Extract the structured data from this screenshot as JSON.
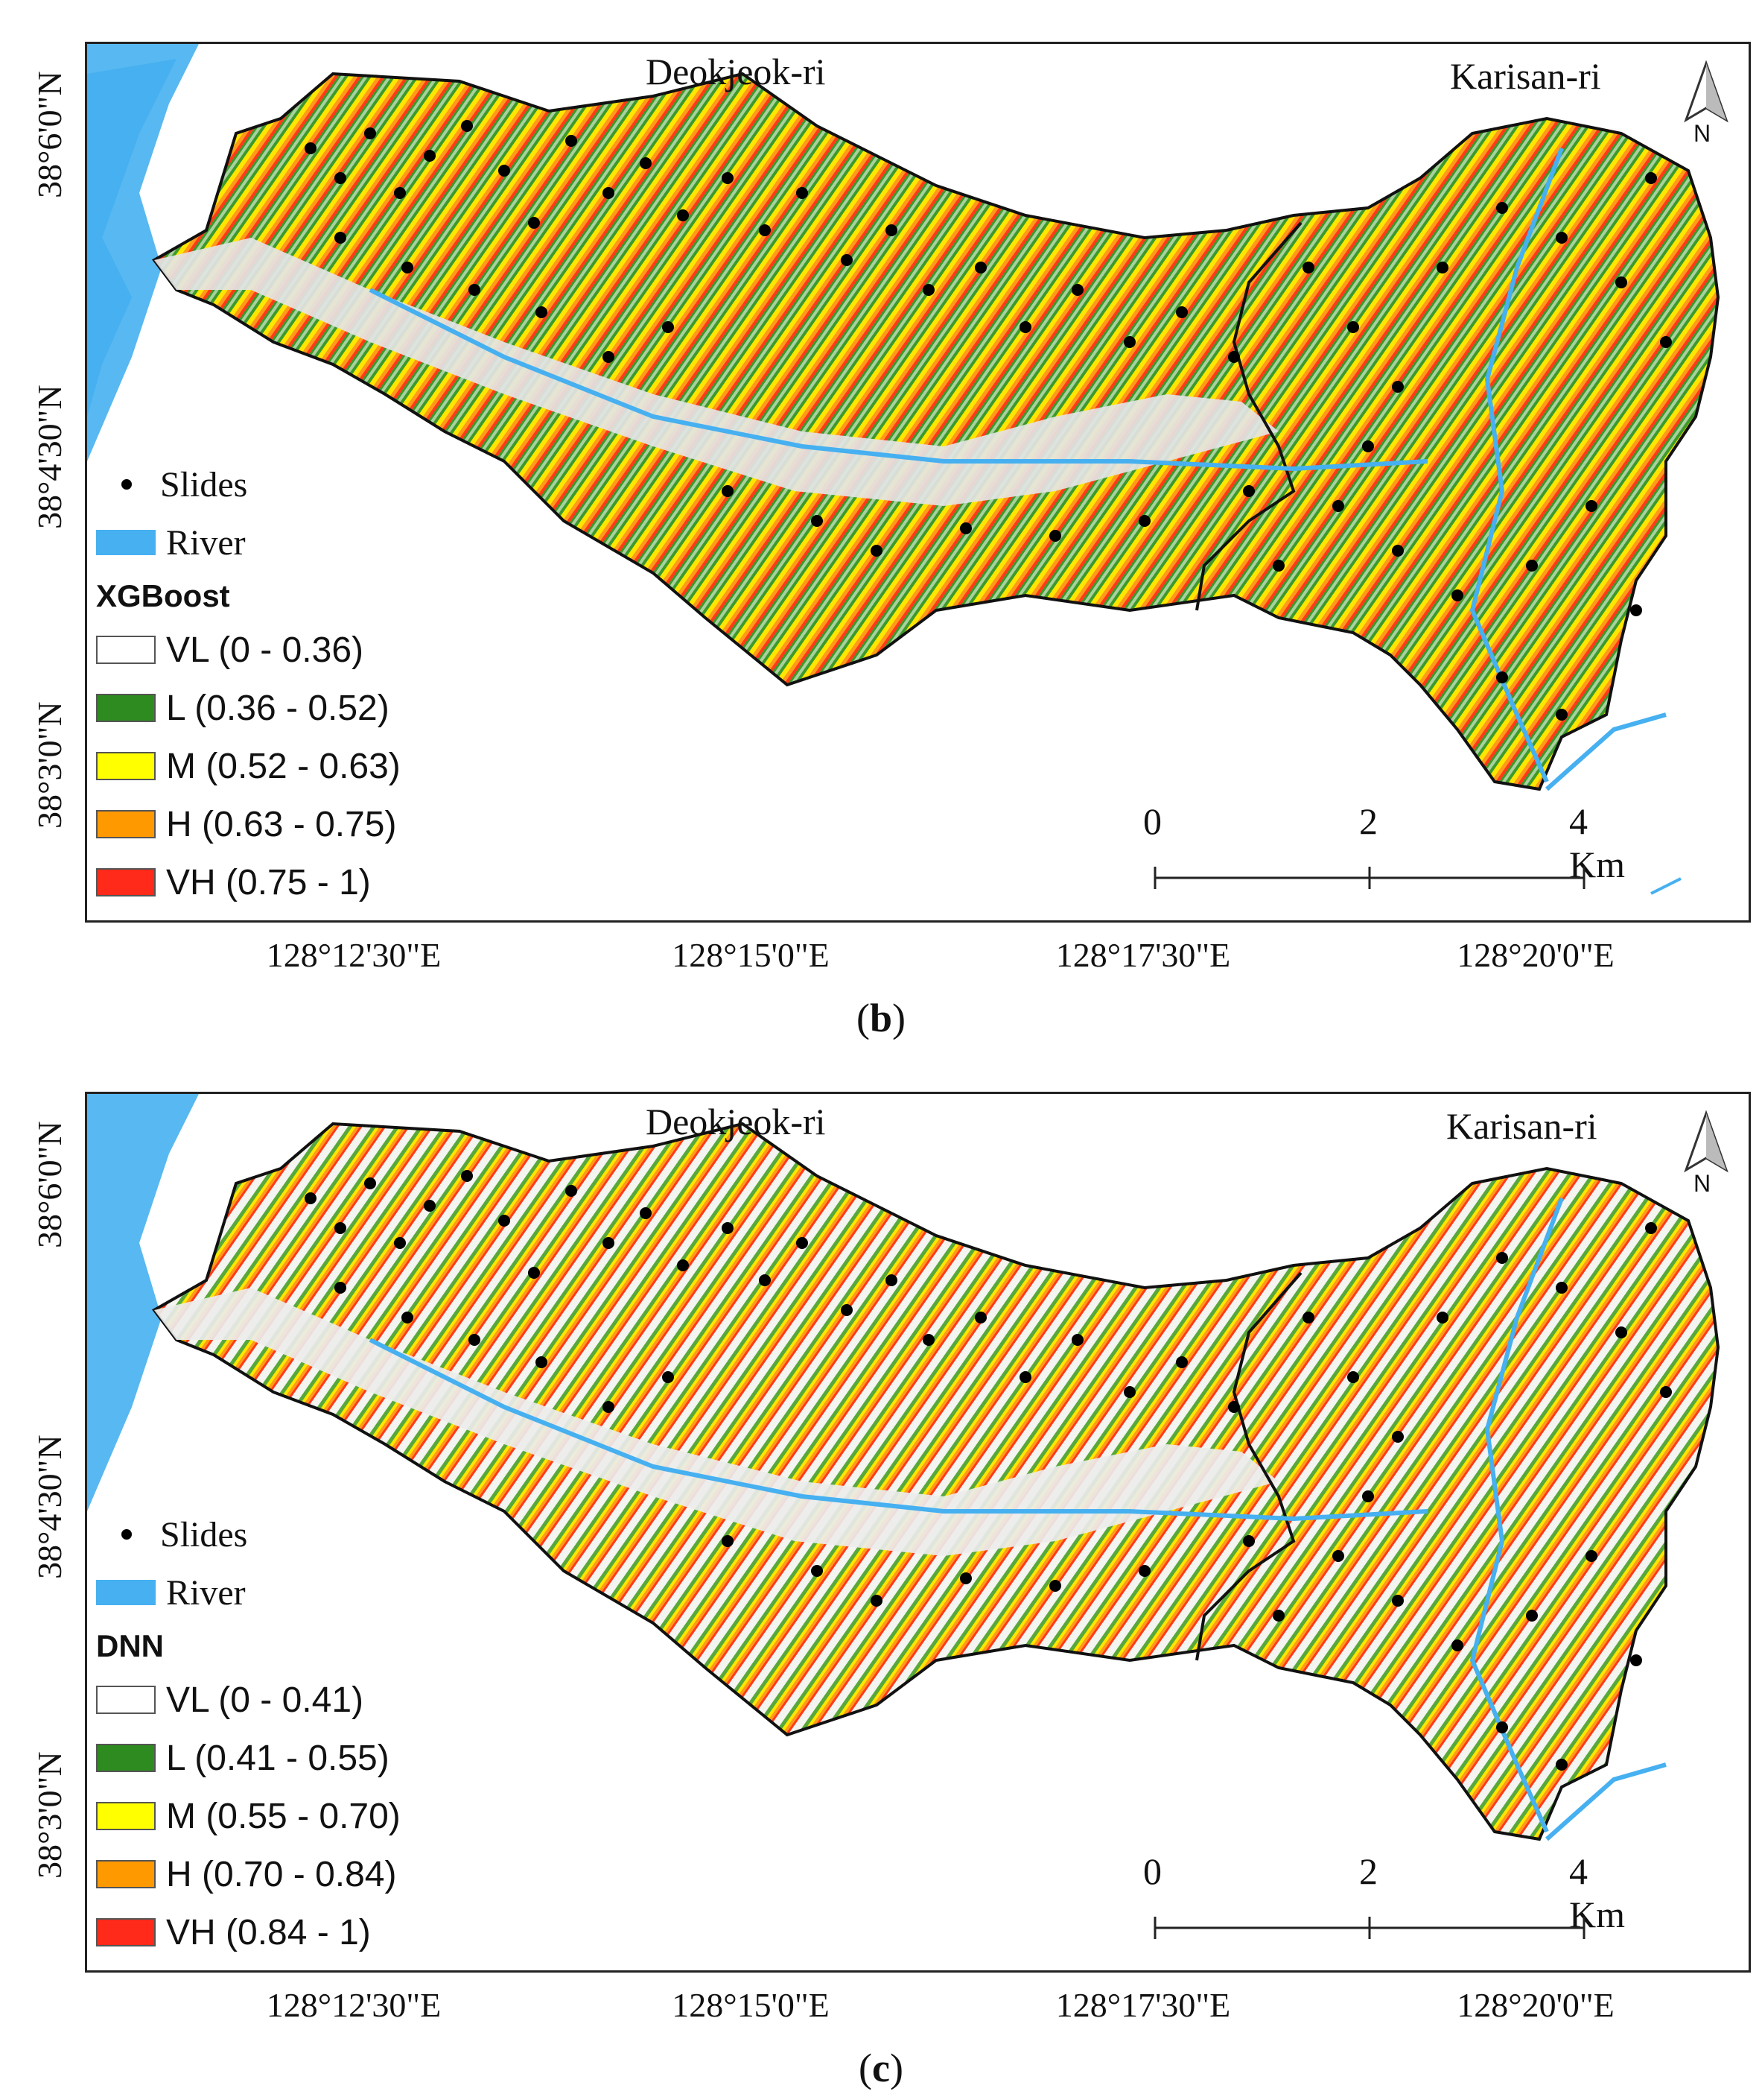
{
  "panels": [
    {
      "id": "b",
      "caption_letter": "b",
      "model": "XGBoost",
      "places": {
        "west": "Deokjeok-ri",
        "east": "Karisan-ri"
      },
      "north": "N",
      "legend": {
        "slides": "Slides",
        "river": "River",
        "classes": [
          {
            "label": "VL (0 - 0.36)",
            "color": "#ffffff"
          },
          {
            "label": "L (0.36 - 0.52)",
            "color": "#2e8b1f"
          },
          {
            "label": "M (0.52 - 0.63)",
            "color": "#ffff00"
          },
          {
            "label": "H (0.63 - 0.75)",
            "color": "#ff9900"
          },
          {
            "label": "VH (0.75 - 1)",
            "color": "#ff2a1a"
          }
        ]
      },
      "scale": {
        "t0": "0",
        "t1": "2",
        "t2": "4 Km"
      },
      "lat_ticks": [
        "38°6'0\"N",
        "38°4'30\"N",
        "38°3'0\"N"
      ],
      "lon_ticks": [
        "128°12'30\"E",
        "128°15'0\"E",
        "128°17'30\"E",
        "128°20'0\"E"
      ]
    },
    {
      "id": "c",
      "caption_letter": "c",
      "model": "DNN",
      "places": {
        "west": "Deokjeok-ri",
        "east": "Karisan-ri"
      },
      "north": "N",
      "legend": {
        "slides": "Slides",
        "river": "River",
        "classes": [
          {
            "label": "VL (0 - 0.41)",
            "color": "#ffffff"
          },
          {
            "label": "L (0.41 - 0.55)",
            "color": "#2e8b1f"
          },
          {
            "label": "M (0.55 - 0.70)",
            "color": "#ffff00"
          },
          {
            "label": "H (0.70 - 0.84)",
            "color": "#ff9900"
          },
          {
            "label": "VH (0.84 - 1)",
            "color": "#ff2a1a"
          }
        ]
      },
      "scale": {
        "t0": "0",
        "t1": "2",
        "t2": "4 Km"
      },
      "lat_ticks": [
        "38°6'0\"N",
        "38°4'30\"N",
        "38°3'0\"N"
      ],
      "lon_ticks": [
        "128°12'30\"E",
        "128°15'0\"E",
        "128°17'30\"E",
        "128°20'0\"E"
      ]
    }
  ],
  "colors": {
    "river": "#46b0f0",
    "slides": "#000000",
    "boundary": "#111111"
  }
}
